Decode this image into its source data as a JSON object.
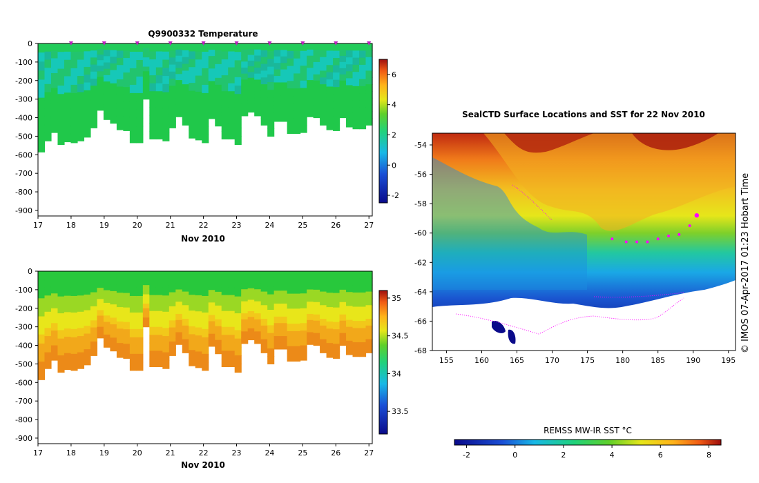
{
  "chart_data": [
    {
      "type": "heatmap",
      "title": "Q9900332  Temperature",
      "xlabel": "Nov 2010",
      "ylabel": "",
      "xlim": [
        17,
        27.1
      ],
      "ylim": [
        -930,
        0
      ],
      "x_ticks": [
        "17",
        "18",
        "19",
        "20",
        "21",
        "22",
        "23",
        "24",
        "25",
        "26",
        "27"
      ],
      "y_ticks": [
        "0",
        "-100",
        "-200",
        "-300",
        "-400",
        "-500",
        "-600",
        "-700",
        "-800",
        "-900"
      ],
      "colorbar": {
        "range": [
          -2.5,
          7
        ],
        "ticks": [
          "-2",
          "0",
          "2",
          "4",
          "6"
        ]
      },
      "profile_markers_day": [
        18,
        19,
        20,
        21,
        22,
        23,
        24,
        25,
        26,
        27
      ],
      "profile_depth_floor": [
        -585,
        -525,
        -480,
        -545,
        -530,
        -535,
        -525,
        -505,
        -455,
        -360,
        -410,
        -430,
        -465,
        -470,
        -535,
        -535,
        -300,
        -515,
        -515,
        -525,
        -455,
        -395,
        -440,
        -510,
        -520,
        -535,
        -405,
        -445,
        -515,
        -515,
        -545,
        -390,
        -370,
        -390,
        -440,
        -500,
        -420,
        -420,
        -485,
        -485,
        -480,
        -395,
        -400,
        -440,
        -465,
        -470,
        -400,
        -450,
        -460,
        -460,
        -440
      ]
    },
    {
      "type": "heatmap",
      "title": "",
      "xlabel": "Nov 2010",
      "ylabel": "",
      "xlim": [
        17,
        27.1
      ],
      "ylim": [
        -930,
        0
      ],
      "x_ticks": [
        "17",
        "18",
        "19",
        "20",
        "21",
        "22",
        "23",
        "24",
        "25",
        "26",
        "27"
      ],
      "y_ticks": [
        "0",
        "-100",
        "-200",
        "-300",
        "-400",
        "-500",
        "-600",
        "-700",
        "-800",
        "-900"
      ],
      "colorbar": {
        "range": [
          33.2,
          35.1
        ],
        "ticks": [
          "33.5",
          "34",
          "34.5",
          "35"
        ]
      }
    },
    {
      "type": "heatmap",
      "title": "SealCTD Surface Locations and SST for 22 Nov 2010",
      "xlabel": "",
      "ylabel": "",
      "xlim": [
        153,
        196
      ],
      "ylim": [
        -68,
        -53.2
      ],
      "x_ticks": [
        "155",
        "160",
        "165",
        "170",
        "175",
        "180",
        "185",
        "190",
        "195"
      ],
      "y_ticks": [
        "-54",
        "-56",
        "-58",
        "-60",
        "-62",
        "-64",
        "-66",
        "-68"
      ],
      "side_label": "© IMOS 07-Apr-2017 01:23 Hobart Time",
      "colorbar": {
        "title": "REMSS MW-IR SST °C",
        "range": [
          -2.5,
          8.5
        ],
        "ticks": [
          "-2",
          "0",
          "2",
          "4",
          "6",
          "8"
        ]
      },
      "surface_locations": [
        {
          "lon": 178.5,
          "lat": -60.4
        },
        {
          "lon": 180.5,
          "lat": -60.6
        },
        {
          "lon": 182.0,
          "lat": -60.6
        },
        {
          "lon": 183.5,
          "lat": -60.6
        },
        {
          "lon": 185.0,
          "lat": -60.4
        },
        {
          "lon": 186.5,
          "lat": -60.2
        },
        {
          "lon": 188.0,
          "lat": -60.1
        },
        {
          "lon": 189.5,
          "lat": -59.5
        },
        {
          "lon": 190.5,
          "lat": -58.8
        }
      ]
    }
  ]
}
